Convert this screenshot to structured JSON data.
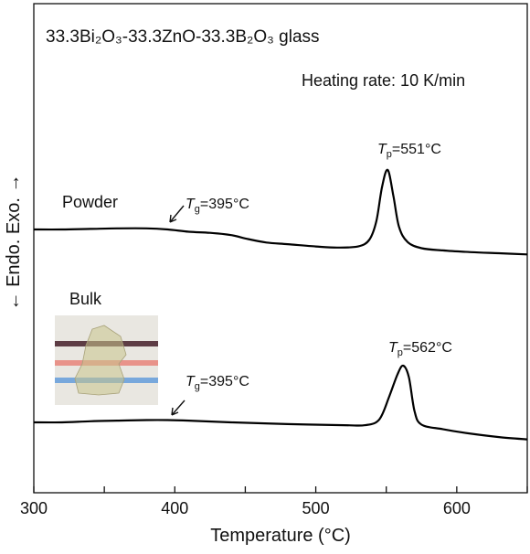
{
  "chart_data": {
    "type": "line",
    "title": "33.3Bi₂O₃-33.3ZnO-33.3B₂O₃ glass",
    "heating_rate": "Heating rate: 10 K/min",
    "xlabel": "Temperature (°C)",
    "ylabel": "← Endo.   Exo. →",
    "xlim": [
      300,
      650
    ],
    "x_ticks": [
      300,
      400,
      500,
      600
    ],
    "x_tick_labels": [
      "300",
      "400",
      "500",
      "600"
    ],
    "y_ticks_shown": false,
    "grid": false,
    "series": [
      {
        "name": "Powder",
        "x": [
          300,
          320,
          340,
          360,
          380,
          395,
          410,
          425,
          440,
          452,
          465,
          480,
          500,
          515,
          530,
          538,
          543,
          547,
          551,
          555,
          559,
          565,
          575,
          590,
          610,
          630,
          650
        ],
        "y": [
          0.0,
          0.0,
          0.01,
          0.02,
          0.02,
          0.0,
          -0.04,
          -0.06,
          -0.1,
          -0.17,
          -0.23,
          -0.26,
          -0.3,
          -0.32,
          -0.3,
          -0.18,
          0.15,
          0.75,
          1.05,
          0.6,
          0.05,
          -0.22,
          -0.33,
          -0.37,
          -0.4,
          -0.42,
          -0.44
        ]
      },
      {
        "name": "Bulk",
        "x": [
          300,
          320,
          340,
          360,
          380,
          395,
          410,
          440,
          480,
          520,
          535,
          545,
          552,
          558,
          562,
          566,
          570,
          575,
          590,
          610,
          630,
          650
        ],
        "y": [
          0.0,
          0.0,
          0.02,
          0.03,
          0.04,
          0.04,
          0.03,
          0.0,
          -0.03,
          -0.05,
          -0.05,
          0.05,
          0.45,
          0.85,
          1.0,
          0.8,
          0.2,
          -0.04,
          -0.12,
          -0.2,
          -0.26,
          -0.3
        ]
      }
    ],
    "annotations": [
      {
        "series": "Powder",
        "kind": "Tg",
        "symbol": "T",
        "sub": "g",
        "text": "=395°C"
      },
      {
        "series": "Powder",
        "kind": "Tp",
        "symbol": "T",
        "sub": "p",
        "text": "=551°C"
      },
      {
        "series": "Bulk",
        "kind": "Tg",
        "symbol": "T",
        "sub": "g",
        "text": "=395°C"
      },
      {
        "series": "Bulk",
        "kind": "Tp",
        "symbol": "T",
        "sub": "p",
        "text": "=562°C"
      }
    ],
    "inset_photo": {
      "subject": "bulk glass sample photo",
      "stripe_colors": [
        "#5e3d45",
        "#e8938a",
        "#78a8dc"
      ]
    },
    "line_color": "#000000"
  }
}
